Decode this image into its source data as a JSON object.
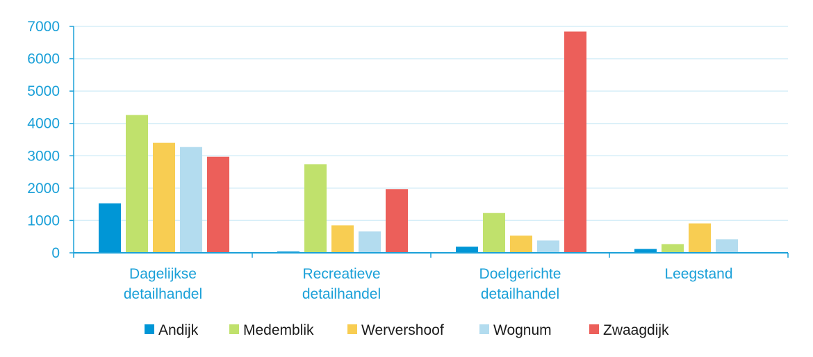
{
  "chart_data": {
    "type": "bar",
    "categories": [
      [
        "Dagelijkse",
        "detailhandel"
      ],
      [
        "Recreatieve",
        "detailhandel"
      ],
      [
        "Doelgerichte",
        "detailhandel"
      ],
      [
        "Leegstand"
      ]
    ],
    "series": [
      {
        "name": "Andijk",
        "color": "#0096d6",
        "values": [
          1530,
          40,
          190,
          120
        ]
      },
      {
        "name": "Medemblik",
        "color": "#c0e16c",
        "values": [
          4260,
          2740,
          1230,
          270
        ]
      },
      {
        "name": "Wervershoof",
        "color": "#f8cd52",
        "values": [
          3400,
          850,
          530,
          910
        ]
      },
      {
        "name": "Wognum",
        "color": "#b3dcef",
        "values": [
          3270,
          660,
          380,
          420
        ]
      },
      {
        "name": "Zwaagdijk",
        "color": "#ec5f5a",
        "values": [
          2970,
          1970,
          6840,
          0
        ]
      }
    ],
    "ylim": [
      0,
      7000
    ],
    "yticks": [
      0,
      1000,
      2000,
      3000,
      4000,
      5000,
      6000,
      7000
    ],
    "grid": true,
    "legend": "bottom",
    "axis_color": "#1aa0d8",
    "grid_color": "#d6eef8"
  }
}
